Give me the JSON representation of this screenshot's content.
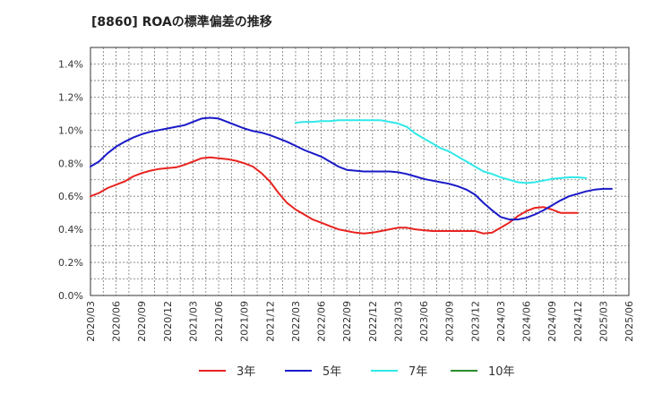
{
  "chart_data": {
    "type": "line",
    "title": "[8860]  ROAの標準偏差の推移",
    "xlabel": "",
    "ylabel": "",
    "ylim": [
      0,
      1.5
    ],
    "yticks": [
      "0.0%",
      "0.2%",
      "0.4%",
      "0.6%",
      "0.8%",
      "1.0%",
      "1.2%",
      "1.4%"
    ],
    "ytick_values": [
      0,
      0.2,
      0.4,
      0.6,
      0.8,
      1.0,
      1.2,
      1.4
    ],
    "xticks": [
      "2020/03",
      "2020/06",
      "2020/09",
      "2020/12",
      "2021/03",
      "2021/06",
      "2021/09",
      "2021/12",
      "2022/03",
      "2022/06",
      "2022/09",
      "2022/12",
      "2023/03",
      "2023/06",
      "2023/09",
      "2023/12",
      "2024/03",
      "2024/06",
      "2024/09",
      "2024/12",
      "2025/03",
      "2025/06"
    ],
    "grid": true,
    "legend_position": "bottom",
    "series": [
      {
        "name": "3年",
        "color": "#e8231f",
        "start_index": 0,
        "values": [
          0.6,
          0.62,
          0.65,
          0.67,
          0.69,
          0.72,
          0.74,
          0.755,
          0.765,
          0.77,
          0.775,
          0.79,
          0.81,
          0.83,
          0.835,
          0.83,
          0.825,
          0.815,
          0.8,
          0.78,
          0.74,
          0.69,
          0.62,
          0.56,
          0.52,
          0.49,
          0.46,
          0.44,
          0.42,
          0.4,
          0.39,
          0.38,
          0.375,
          0.38,
          0.39,
          0.4,
          0.41,
          0.41,
          0.4,
          0.395,
          0.39,
          0.39,
          0.39,
          0.39,
          0.39,
          0.39,
          0.375,
          0.38,
          0.41,
          0.44,
          0.48,
          0.51,
          0.53,
          0.535,
          0.52,
          0.5,
          0.5,
          0.5
        ]
      },
      {
        "name": "5年",
        "color": "#1a1ac8",
        "start_index": 0,
        "values": [
          0.78,
          0.81,
          0.86,
          0.9,
          0.93,
          0.955,
          0.975,
          0.99,
          1.0,
          1.01,
          1.02,
          1.03,
          1.05,
          1.07,
          1.075,
          1.07,
          1.05,
          1.03,
          1.01,
          0.995,
          0.985,
          0.97,
          0.95,
          0.93,
          0.905,
          0.88,
          0.86,
          0.84,
          0.81,
          0.78,
          0.76,
          0.755,
          0.75,
          0.75,
          0.75,
          0.75,
          0.745,
          0.735,
          0.72,
          0.705,
          0.695,
          0.685,
          0.675,
          0.66,
          0.64,
          0.61,
          0.56,
          0.515,
          0.475,
          0.46,
          0.46,
          0.47,
          0.49,
          0.515,
          0.545,
          0.575,
          0.6,
          0.615,
          0.63,
          0.64,
          0.645,
          0.645
        ]
      },
      {
        "name": "7年",
        "color": "#30e8e8",
        "start_index": 24,
        "values": [
          1.045,
          1.05,
          1.05,
          1.055,
          1.055,
          1.06,
          1.06,
          1.06,
          1.06,
          1.06,
          1.06,
          1.05,
          1.04,
          1.02,
          0.98,
          0.95,
          0.92,
          0.89,
          0.87,
          0.84,
          0.81,
          0.78,
          0.75,
          0.735,
          0.715,
          0.7,
          0.685,
          0.68,
          0.685,
          0.695,
          0.705,
          0.71,
          0.715,
          0.715,
          0.71
        ]
      },
      {
        "name": "10年",
        "color": "#2a8c2a",
        "start_index": 0,
        "values": []
      }
    ]
  }
}
